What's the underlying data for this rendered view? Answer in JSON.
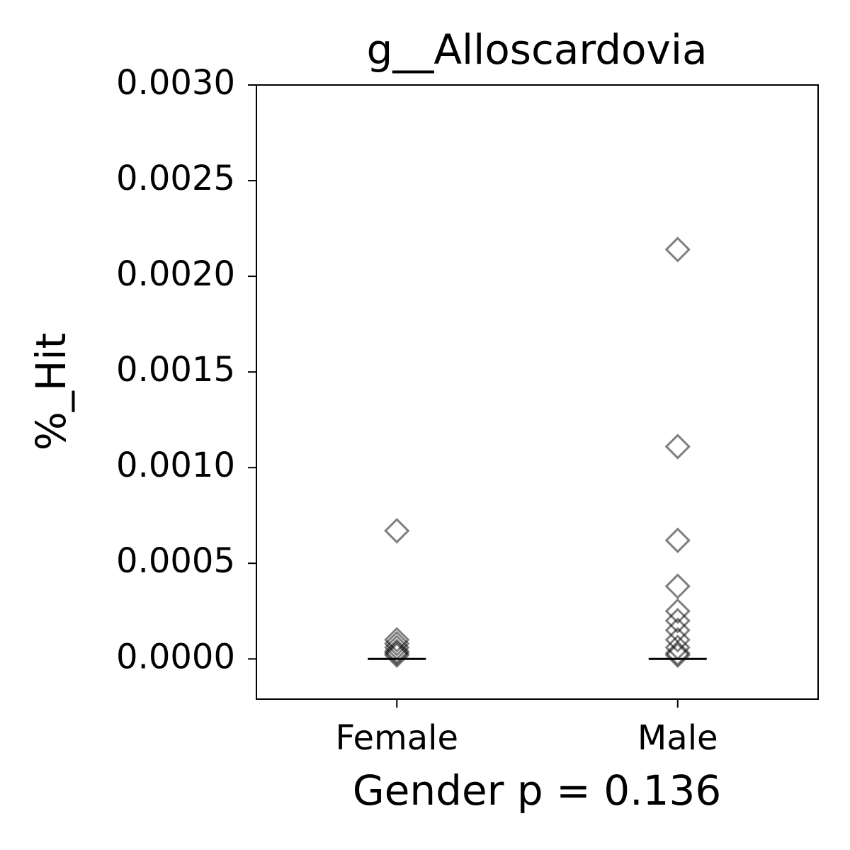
{
  "chart_data": {
    "type": "strip",
    "title": "g__Alloscardovia",
    "xlabel": "Gender p = 0.136",
    "ylabel": "%_Hit",
    "categories": [
      "Female",
      "Male"
    ],
    "values": [
      [
        0.00067,
        0.0001,
        8e-05,
        6e-05,
        4e-05,
        3e-05,
        2e-05
      ],
      [
        0.00214,
        0.00111,
        0.00062,
        0.00038,
        0.00025,
        0.0002,
        0.00015,
        0.0001,
        6e-05,
        3e-05,
        2e-05
      ]
    ],
    "medians": [
      0,
      0
    ],
    "color": "#000000",
    "marker": "diamond",
    "ylim": [
      -0.00021,
      0.003
    ],
    "yticks": [
      {
        "value": 0,
        "label": "0.0000"
      },
      {
        "value": 0.0005,
        "label": "0.0005"
      },
      {
        "value": 0.001,
        "label": "0.0010"
      },
      {
        "value": 0.0015,
        "label": "0.0015"
      },
      {
        "value": 0.002,
        "label": "0.0020"
      },
      {
        "value": 0.0025,
        "label": "0.0025"
      },
      {
        "value": 0.003,
        "label": "0.0030"
      }
    ]
  }
}
